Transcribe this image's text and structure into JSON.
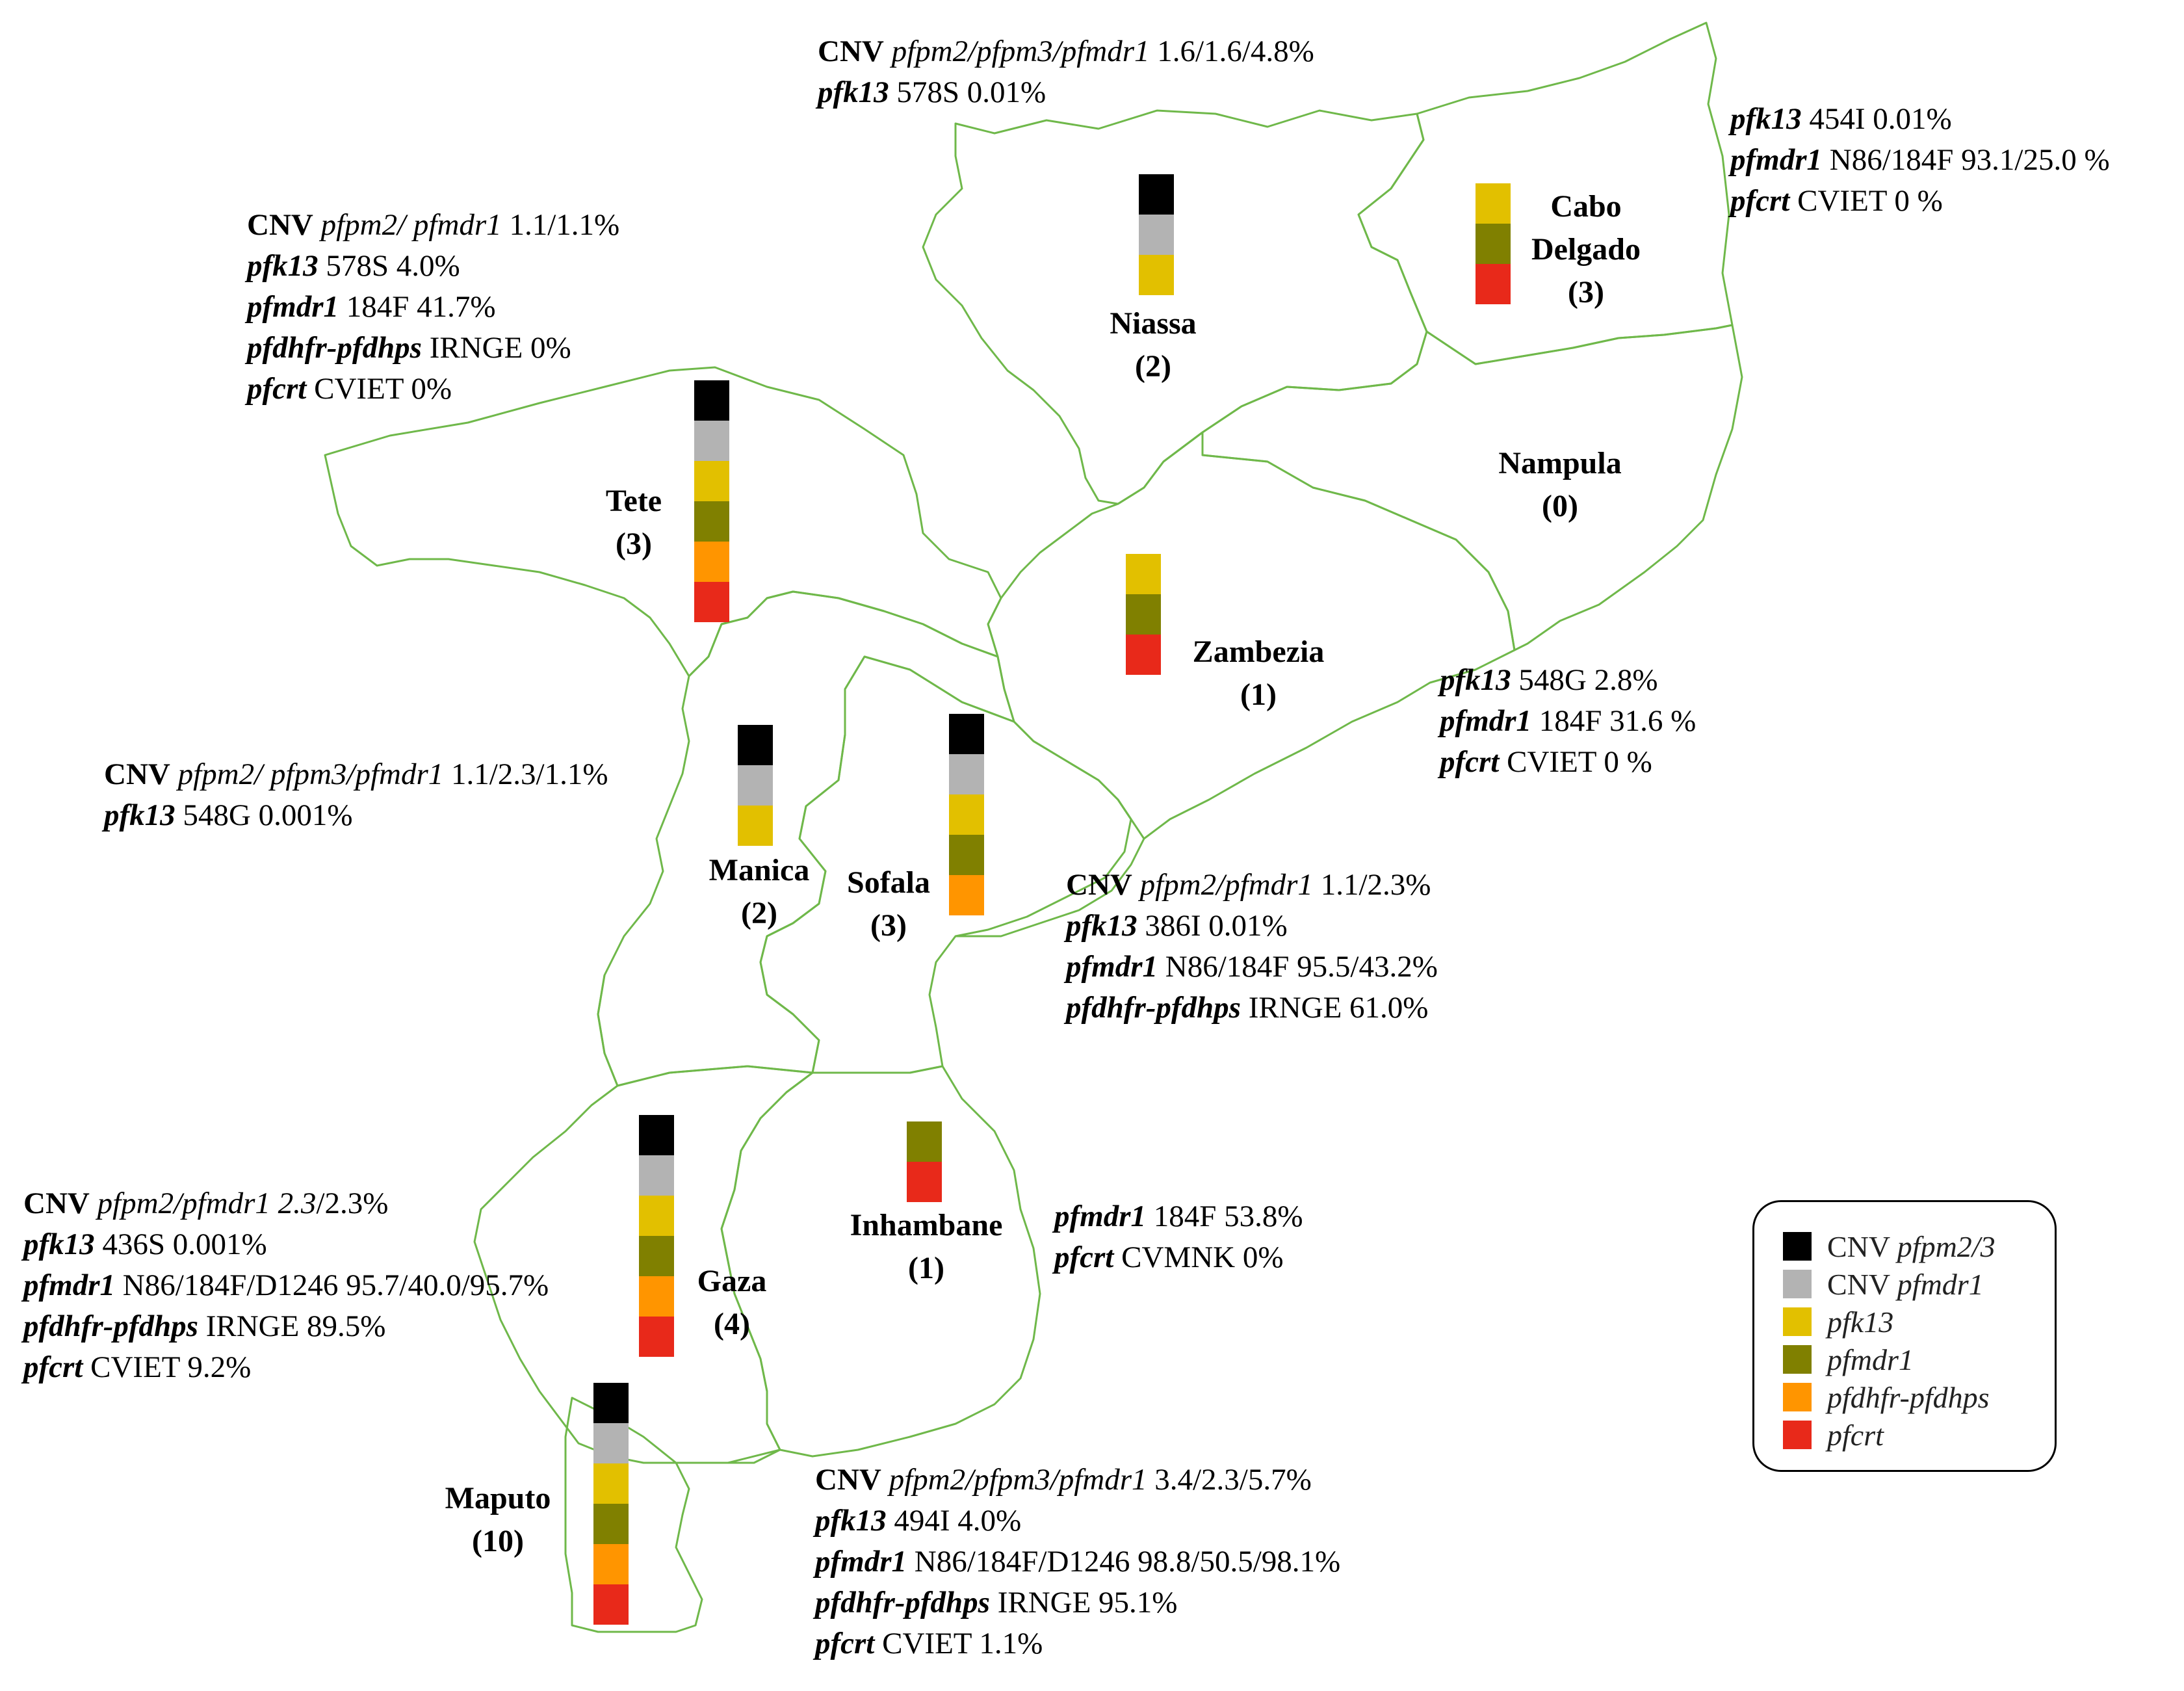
{
  "colors": {
    "border": "#6fb84a",
    "cnv_pfpm23": "#000000",
    "cnv_pfmdr1": "#b3b3b3",
    "pfk13": "#e2c000",
    "pfmdr1": "#808000",
    "pfdhfr_pfdhps": "#ff9500",
    "pfcrt": "#e8291a"
  },
  "legend": {
    "items": [
      {
        "key": "cnv_pfpm23",
        "prefix": "CNV ",
        "label": "pfpm2/3",
        "color": "#000000"
      },
      {
        "key": "cnv_pfmdr1",
        "prefix": "CNV ",
        "label": "pfmdr1",
        "color": "#b3b3b3"
      },
      {
        "key": "pfk13",
        "prefix": "",
        "label": "pfk13",
        "color": "#e2c000"
      },
      {
        "key": "pfmdr1",
        "prefix": "",
        "label": "pfmdr1",
        "color": "#808000"
      },
      {
        "key": "pfdhfr_pfdhps",
        "prefix": "",
        "label": "pfdhfr-pfdhps",
        "color": "#ff9500"
      },
      {
        "key": "pfcrt",
        "prefix": "",
        "label": "pfcrt",
        "color": "#e8291a"
      }
    ]
  },
  "regions": [
    {
      "id": "niassa",
      "name": "Niassa",
      "count": "(2)",
      "markers": [
        "cnv_pfpm23",
        "cnv_pfmdr1",
        "pfk13"
      ]
    },
    {
      "id": "cabo",
      "name": "Cabo",
      "name2": "Delgado",
      "count": "(3)",
      "markers": [
        "pfk13",
        "pfmdr1",
        "pfcrt"
      ]
    },
    {
      "id": "nampula",
      "name": "Nampula",
      "count": "(0)",
      "markers": []
    },
    {
      "id": "tete",
      "name": "Tete",
      "count": "(3)",
      "markers": [
        "cnv_pfpm23",
        "cnv_pfmdr1",
        "pfk13",
        "pfmdr1",
        "pfdhfr_pfdhps",
        "pfcrt"
      ]
    },
    {
      "id": "zambezia",
      "name": "Zambezia",
      "count": "(1)",
      "markers": [
        "pfk13",
        "pfmdr1",
        "pfcrt"
      ]
    },
    {
      "id": "manica",
      "name": "Manica",
      "count": "(2)",
      "markers": [
        "cnv_pfpm23",
        "cnv_pfmdr1",
        "pfk13"
      ]
    },
    {
      "id": "sofala",
      "name": "Sofala",
      "count": "(3)",
      "markers": [
        "cnv_pfpm23",
        "cnv_pfmdr1",
        "pfk13",
        "pfmdr1",
        "pfdhfr_pfdhps"
      ]
    },
    {
      "id": "inhambane",
      "name": "Inhambane",
      "count": "(1)",
      "markers": [
        "pfmdr1",
        "pfcrt"
      ]
    },
    {
      "id": "gaza",
      "name": "Gaza",
      "count": "(4)",
      "markers": [
        "cnv_pfpm23",
        "cnv_pfmdr1",
        "pfk13",
        "pfmdr1",
        "pfdhfr_pfdhps",
        "pfcrt"
      ]
    },
    {
      "id": "maputo",
      "name": "Maputo",
      "count": "(10)",
      "markers": [
        "cnv_pfpm23",
        "cnv_pfmdr1",
        "pfk13",
        "pfmdr1",
        "pfdhfr_pfdhps",
        "pfcrt"
      ]
    }
  ],
  "annotations": {
    "niassa": [
      {
        "b": "CNV",
        "i": "pfpm2/pfpm3/pfmdr1",
        "t": "1.6/1.6/4.8%"
      },
      {
        "g": "pfk13",
        "t": "578S 0.01%"
      }
    ],
    "cabo": [
      {
        "g": "pfk13",
        "t": "454I 0.01%"
      },
      {
        "g": "pfmdr1",
        "t": "N86/184F 93.1/25.0 %"
      },
      {
        "g": "pfcrt",
        "t": "CVIET 0 %"
      }
    ],
    "tete": [
      {
        "b": "CNV",
        "i": "pfpm2/ pfmdr1",
        "t": "1.1/1.1%"
      },
      {
        "g": "pfk13",
        "t": "578S 4.0%"
      },
      {
        "g": "pfmdr1",
        "t": "184F 41.7%"
      },
      {
        "g": "pfdhfr-pfdhps",
        "t": "IRNGE 0%"
      },
      {
        "g": "pfcrt",
        "t": "CVIET 0%"
      }
    ],
    "zambezia": [
      {
        "g": "pfk13",
        "t": "548G 2.8%"
      },
      {
        "g": "pfmdr1",
        "t": "184F 31.6 %"
      },
      {
        "g": "pfcrt",
        "t": "CVIET 0 %"
      }
    ],
    "manica": [
      {
        "b": "CNV",
        "i": "pfpm2/ pfpm3/pfmdr1",
        "t": "1.1/2.3/1.1%"
      },
      {
        "g": "pfk13",
        "t": "548G 0.001%"
      }
    ],
    "sofala": [
      {
        "b": "CNV",
        "i": "pfpm2/pfmdr1",
        "t": "1.1/2.3%"
      },
      {
        "g": "pfk13",
        "t": "386I 0.01%"
      },
      {
        "g": "pfmdr1",
        "t": "N86/184F 95.5/43.2%"
      },
      {
        "g": "pfdhfr-pfdhps",
        "t": "IRNGE 61.0%"
      }
    ],
    "inhambane": [
      {
        "g": "pfmdr1",
        "t": "184F 53.8%"
      },
      {
        "g": "pfcrt",
        "t": "CVMNK 0%"
      }
    ],
    "gaza": [
      {
        "b": "CNV",
        "i": "pfpm2/pfmdr1 2.3",
        "t": "/2.3%"
      },
      {
        "g": "pfk13",
        "t": "436S 0.001%"
      },
      {
        "g": "pfmdr1",
        "t": "N86/184F/D1246 95.7/40.0/95.7%"
      },
      {
        "g": "pfdhfr-pfdhps",
        "t": "IRNGE 89.5%"
      },
      {
        "g": "pfcrt",
        "t": "CVIET 9.2%"
      }
    ],
    "maputo": [
      {
        "b": "CNV",
        "i": "pfpm2/pfpm3/pfmdr1",
        "t": "3.4/2.3/5.7%"
      },
      {
        "g": "pfk13",
        "t": "494I 4.0%"
      },
      {
        "g": "pfmdr1",
        "t": "N86/184F/D1246 98.8/50.5/98.1%"
      },
      {
        "g": "pfdhfr-pfdhps",
        "t": "IRNGE 95.1%"
      },
      {
        "g": "pfcrt",
        "t": "CVIET 1.1%"
      }
    ]
  }
}
